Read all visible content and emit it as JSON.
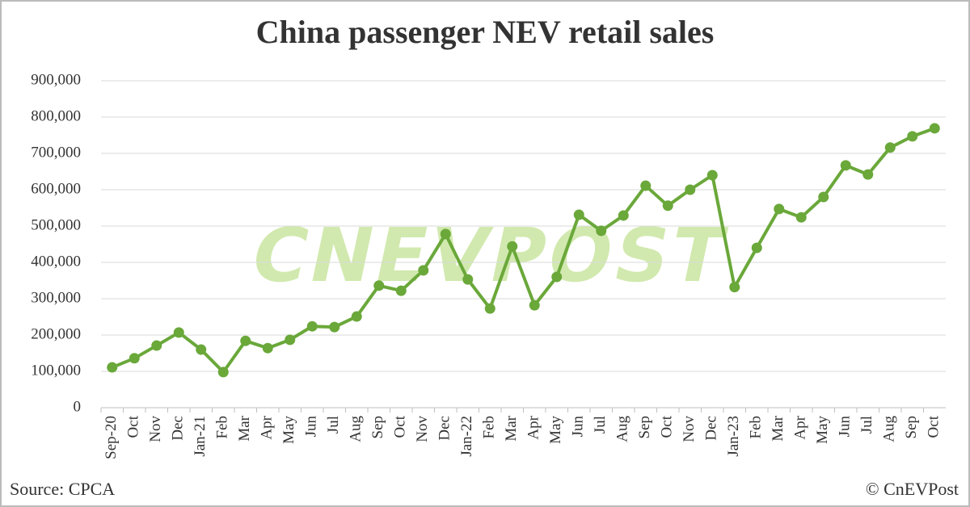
{
  "chart_data": {
    "type": "line",
    "title": "China passenger NEV retail sales",
    "categories": [
      "Sep-20",
      "Oct",
      "Nov",
      "Dec",
      "Jan-21",
      "Feb",
      "Mar",
      "Apr",
      "May",
      "Jun",
      "Jul",
      "Aug",
      "Sep",
      "Oct",
      "Nov",
      "Dec",
      "Jan-22",
      "Feb",
      "Mar",
      "Apr",
      "May",
      "Jun",
      "Jul",
      "Aug",
      "Sep",
      "Oct",
      "Nov",
      "Dec",
      "Jan-23",
      "Feb",
      "Mar",
      "Apr",
      "May",
      "Jun",
      "Jul",
      "Aug",
      "Sep",
      "Oct"
    ],
    "series": [
      {
        "name": "NEV retail sales",
        "color": "#6aa83a",
        "values": [
          111000,
          136000,
          171000,
          207000,
          160000,
          98000,
          184000,
          164000,
          187000,
          224000,
          222000,
          251000,
          336000,
          322000,
          378000,
          478000,
          353000,
          273000,
          444000,
          282000,
          360000,
          531000,
          487000,
          529000,
          611000,
          556000,
          600000,
          640000,
          332000,
          440000,
          547000,
          524000,
          580000,
          667000,
          642000,
          716000,
          747000,
          769000
        ]
      }
    ],
    "ylim": [
      0,
      900000
    ],
    "yticks": [
      0,
      {
        "value": 100000,
        "label": "100,000"
      },
      {
        "value": 200000,
        "label": "200,000"
      },
      {
        "value": 300000,
        "label": "300,000"
      },
      {
        "value": 400000,
        "label": "400,000"
      },
      {
        "value": 500000,
        "label": "500,000"
      },
      {
        "value": 600000,
        "label": "600,000"
      },
      {
        "value": 700000,
        "label": "700,000"
      },
      {
        "value": 800000,
        "label": "800,000"
      },
      {
        "value": 900000,
        "label": "900,000"
      }
    ],
    "grid": true,
    "watermark": "CNEVPOST",
    "source": "Source: CPCA",
    "copyright": "© CnEVPost"
  }
}
